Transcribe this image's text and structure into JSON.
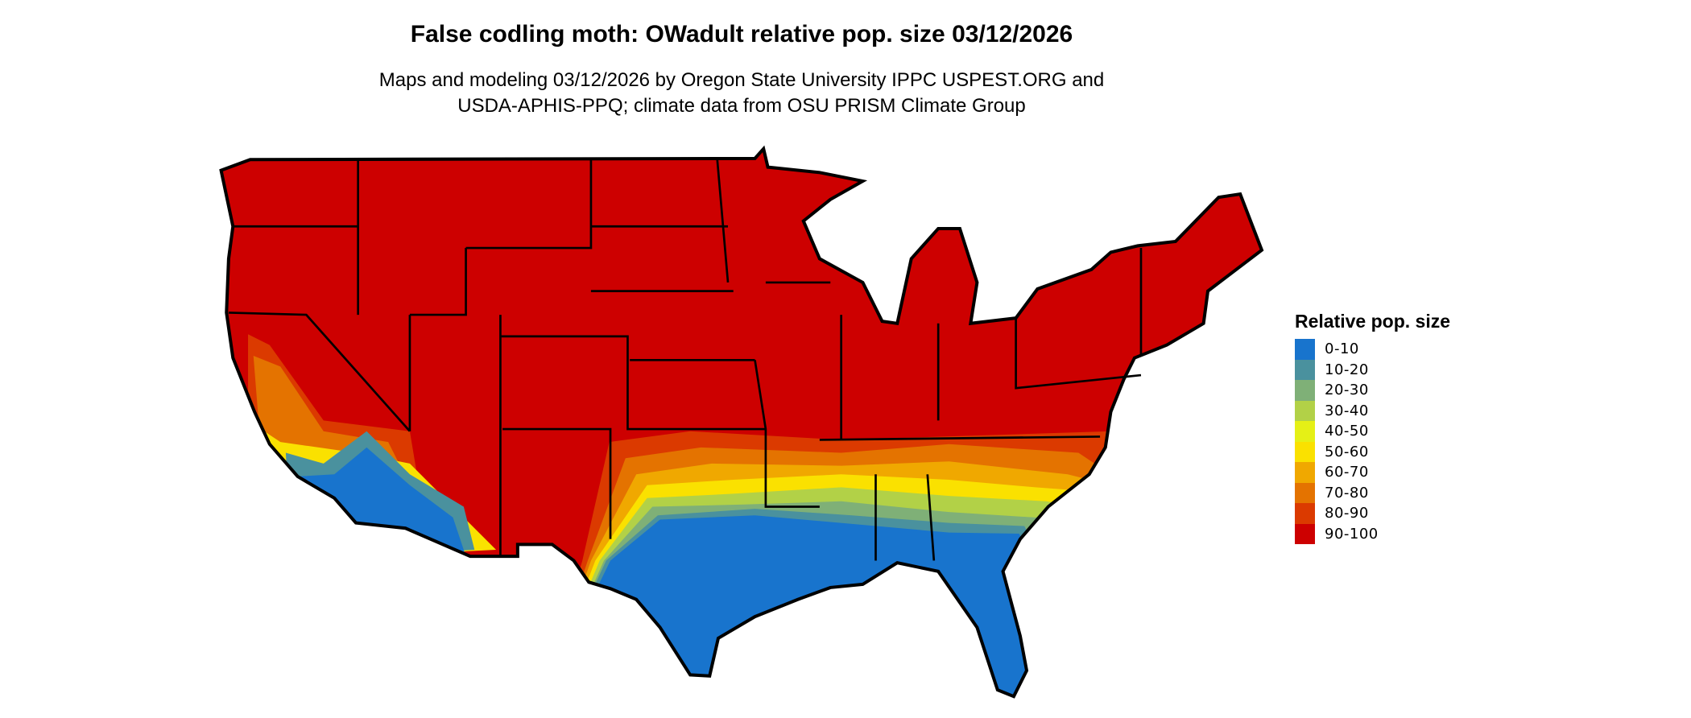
{
  "title": "False codling moth: OWadult relative pop. size 03/12/2026",
  "subtitle_line1": "Maps and modeling 03/12/2026 by Oregon State University IPPC USPEST.ORG and",
  "subtitle_line2": "USDA-APHIS-PPQ; climate data from OSU PRISM Climate Group",
  "legend": {
    "title": "Relative pop. size",
    "items": [
      {
        "label": "0-10",
        "color": "#1874cd"
      },
      {
        "label": "10-20",
        "color": "#4a919e"
      },
      {
        "label": "20-30",
        "color": "#7fb077"
      },
      {
        "label": "30-40",
        "color": "#b2d147"
      },
      {
        "label": "40-50",
        "color": "#e5f016"
      },
      {
        "label": "50-60",
        "color": "#fae100"
      },
      {
        "label": "60-70",
        "color": "#f0a800"
      },
      {
        "label": "70-80",
        "color": "#e47300"
      },
      {
        "label": "80-90",
        "color": "#db3a00"
      },
      {
        "label": "90-100",
        "color": "#cd0000"
      }
    ]
  },
  "map": {
    "region": "Contiguous United States",
    "dominant_class": "90-100",
    "southern_class": "0-10"
  }
}
